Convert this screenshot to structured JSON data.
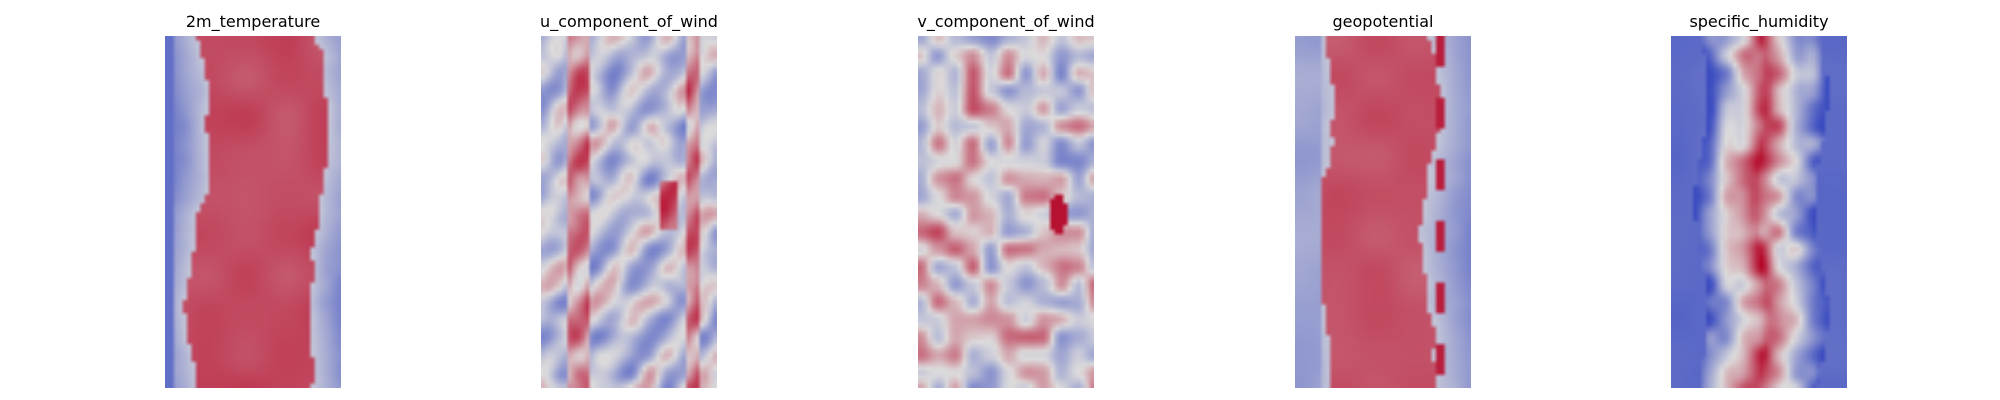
{
  "figure": {
    "panels": [
      {
        "title": "2m_temperature",
        "field": "temperature-band",
        "seed": 11
      },
      {
        "title": "u_component_of_wind",
        "field": "u-wind-streaks",
        "seed": 23
      },
      {
        "title": "v_component_of_wind",
        "field": "v-wind-eddies",
        "seed": 37
      },
      {
        "title": "geopotential",
        "field": "geopotential-band",
        "seed": 51
      },
      {
        "title": "specific_humidity",
        "field": "humidity-core",
        "seed": 67
      }
    ],
    "colormap": {
      "name": "coolwarm",
      "low": "#3b4cc0",
      "mid": "#dddcdc",
      "high": "#b40426"
    }
  }
}
